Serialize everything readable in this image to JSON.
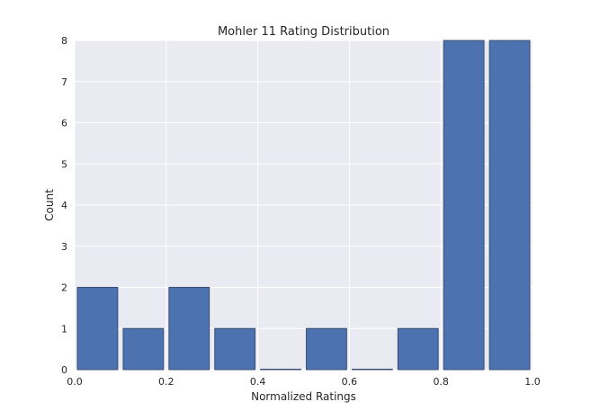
{
  "chart_data": {
    "type": "bar",
    "title": "Mohler 11 Rating Distribution",
    "xlabel": "Normalized Ratings",
    "ylabel": "Count",
    "xlim": [
      0.0,
      1.0
    ],
    "ylim": [
      0,
      8
    ],
    "bin_width": 0.1,
    "bin_starts": [
      0.0,
      0.1,
      0.2,
      0.3,
      0.4,
      0.5,
      0.6,
      0.7,
      0.8,
      0.9
    ],
    "values": [
      2,
      1,
      2,
      1,
      0,
      1,
      0,
      1,
      8,
      8
    ],
    "bar_color": "#4c72b0",
    "bar_edge_color": "#3a4e74",
    "background_color": "#eaeaf2",
    "grid_color": "#ffffff",
    "grid": true,
    "xticks": [
      "0.0",
      "0.2",
      "0.4",
      "0.6",
      "0.8",
      "1.0"
    ],
    "xtick_values": [
      0.0,
      0.2,
      0.4,
      0.6,
      0.8,
      1.0
    ],
    "yticks": [
      "0",
      "1",
      "2",
      "3",
      "4",
      "5",
      "6",
      "7",
      "8"
    ],
    "ytick_values": [
      0,
      1,
      2,
      3,
      4,
      5,
      6,
      7,
      8
    ]
  }
}
